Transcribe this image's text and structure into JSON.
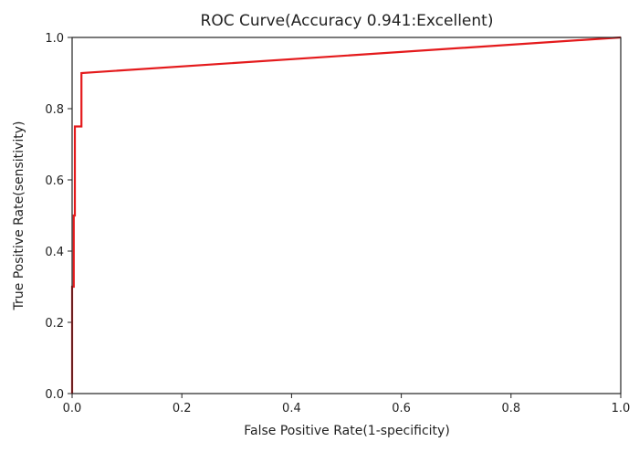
{
  "chart_data": {
    "type": "line",
    "title": "ROC Curve(Accuracy 0.941:Excellent)",
    "xlabel": "False Positive Rate(1-specificity)",
    "ylabel": "True Positive Rate(sensitivity)",
    "xlim": [
      0,
      1
    ],
    "ylim": [
      0,
      1
    ],
    "xticks": [
      "0.0",
      "0.2",
      "0.4",
      "0.6",
      "0.8",
      "1.0"
    ],
    "yticks": [
      "0.0",
      "0.2",
      "0.4",
      "0.6",
      "0.8",
      "1.0"
    ],
    "grid": false,
    "series": [
      {
        "color": "#e41a1c",
        "x": [
          0,
          0,
          0.003,
          0.003,
          0.005,
          0.005,
          0.007,
          0.007,
          0.017,
          0.017,
          1.0
        ],
        "y": [
          0,
          0.3,
          0.3,
          0.5,
          0.5,
          0.75,
          0.75,
          0.75,
          0.75,
          0.9,
          1.0
        ]
      }
    ]
  }
}
